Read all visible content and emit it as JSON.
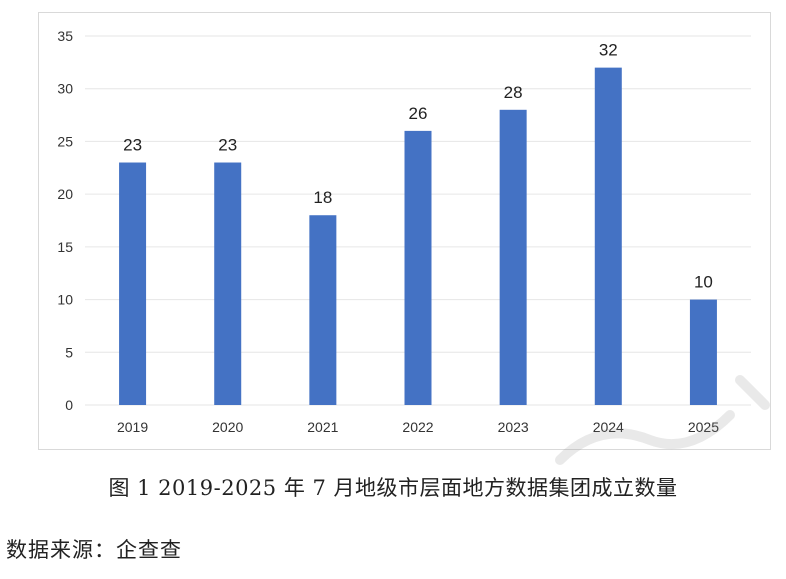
{
  "chart_data": {
    "type": "bar",
    "categories": [
      "2019",
      "2020",
      "2021",
      "2022",
      "2023",
      "2024",
      "2025"
    ],
    "values": [
      23,
      23,
      18,
      26,
      28,
      32,
      10
    ],
    "data_labels": [
      "23",
      "23",
      "18",
      "26",
      "28",
      "32",
      "10"
    ],
    "title": "",
    "xlabel": "",
    "ylabel": "",
    "ylim": [
      0,
      35
    ],
    "yticks": [
      0,
      5,
      10,
      15,
      20,
      25,
      30,
      35
    ],
    "grid": true,
    "bar_color": "#4472c4",
    "grid_color": "#e6e6e6"
  },
  "caption": "图 1 2019-2025 年 7 月地级市层面地方数据集团成立数量",
  "source": "数据来源：企查查"
}
